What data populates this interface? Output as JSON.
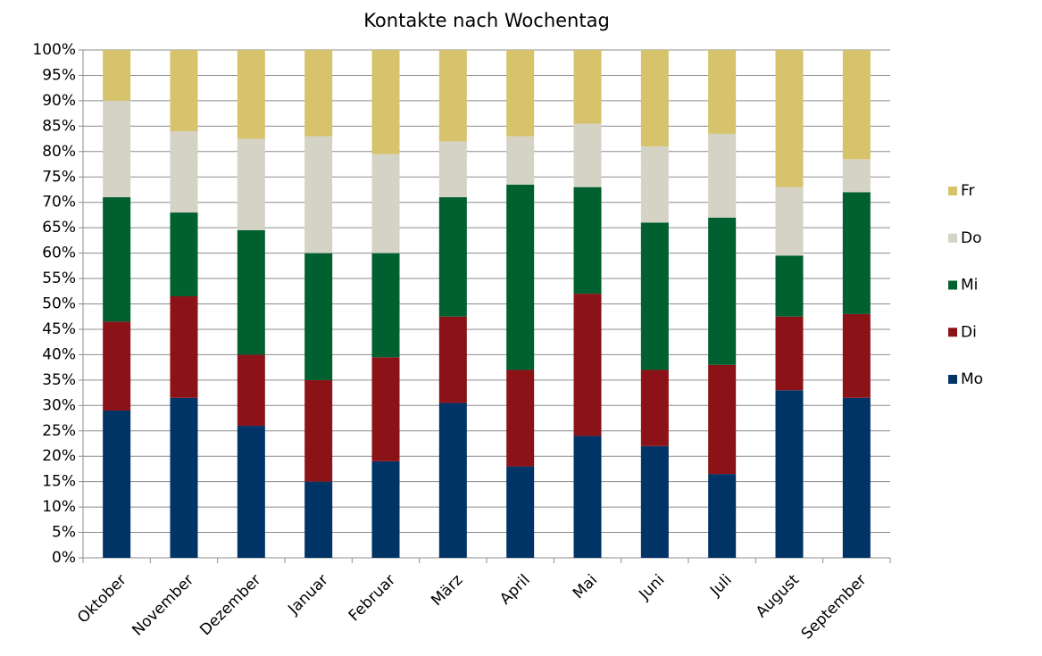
{
  "chart_data": {
    "type": "stacked_bar_100",
    "title": "Kontakte nach Wochentag",
    "categories": [
      "Oktober",
      "November",
      "Dezember",
      "Januar",
      "Februar",
      "März",
      "April",
      "Mai",
      "Juni",
      "Juli",
      "August",
      "September"
    ],
    "series": [
      {
        "name": "Mo",
        "color": "#003366",
        "values": [
          29,
          31.5,
          26,
          15,
          19,
          30.5,
          18,
          24,
          22,
          16.5,
          33,
          31.5
        ]
      },
      {
        "name": "Di",
        "color": "#8b1318",
        "values": [
          17.5,
          20,
          14,
          20,
          20.5,
          17,
          19,
          28,
          15,
          21.5,
          14.5,
          16.5
        ]
      },
      {
        "name": "Mi",
        "color": "#00602f",
        "values": [
          24.5,
          16.5,
          24.5,
          25,
          20.5,
          23.5,
          36.5,
          21,
          29,
          29,
          12,
          24
        ]
      },
      {
        "name": "Do",
        "color": "#d5d3c6",
        "values": [
          19,
          16,
          18,
          23,
          19.5,
          11,
          9.5,
          12.5,
          15,
          16.5,
          13.5,
          6.5
        ]
      },
      {
        "name": "Fr",
        "color": "#d6c36c",
        "values": [
          10,
          16,
          17.5,
          17,
          20.5,
          18,
          17,
          14.5,
          19,
          16.5,
          27,
          21.5
        ]
      }
    ],
    "ylim": [
      0,
      100
    ],
    "yticks": [
      {
        "value": 0,
        "label": "0%"
      },
      {
        "value": 5,
        "label": "5%"
      },
      {
        "value": 10,
        "label": "10%"
      },
      {
        "value": 15,
        "label": "15%"
      },
      {
        "value": 20,
        "label": "20%"
      },
      {
        "value": 25,
        "label": "25%"
      },
      {
        "value": 30,
        "label": "30%"
      },
      {
        "value": 35,
        "label": "35%"
      },
      {
        "value": 40,
        "label": "40%"
      },
      {
        "value": 45,
        "label": "45%"
      },
      {
        "value": 50,
        "label": "50%"
      },
      {
        "value": 55,
        "label": "55%"
      },
      {
        "value": 60,
        "label": "60%"
      },
      {
        "value": 65,
        "label": "65%"
      },
      {
        "value": 70,
        "label": "70%"
      },
      {
        "value": 75,
        "label": "75%"
      },
      {
        "value": 80,
        "label": "80%"
      },
      {
        "value": 85,
        "label": "85%"
      },
      {
        "value": 90,
        "label": "90%"
      },
      {
        "value": 95,
        "label": "95%"
      },
      {
        "value": 100,
        "label": "100%"
      }
    ],
    "grid": true,
    "legend": "right"
  }
}
